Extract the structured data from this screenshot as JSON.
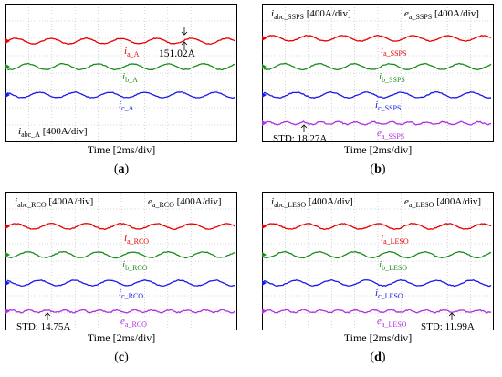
{
  "colors": {
    "a": "#e60000",
    "b": "#1a8c1a",
    "c": "#1a1ae6",
    "e": "#b030e0",
    "grid": "#b8b8b8",
    "frame": "#000000"
  },
  "panels": [
    {
      "id": "a",
      "caption": "a",
      "time_label": "Time [2ms/div]",
      "header_left": "i",
      "header_left_sub": "abc_A",
      "header_left_scale": " [400A/div]",
      "header_left_position": "bottom",
      "header_right": "",
      "header_right_sub": "",
      "header_right_scale": "",
      "labels": [
        {
          "main": "i",
          "sub": "a_A",
          "color": "a",
          "series": "a"
        },
        {
          "main": "i",
          "sub": "b_A",
          "color": "b",
          "series": "b"
        },
        {
          "main": "i",
          "sub": "c_A",
          "color": "c",
          "series": "c"
        }
      ],
      "annotation": "151.02A",
      "annotation_kind": "amplitude",
      "std_text": ""
    },
    {
      "id": "b",
      "caption": "b",
      "time_label": "Time [2ms/div]",
      "header_left": "i",
      "header_left_sub": "abc_SSPS",
      "header_left_scale": " [400A/div]",
      "header_left_position": "top",
      "header_right": "e",
      "header_right_sub": "a_SSPS",
      "header_right_scale": " [400A/div]",
      "labels": [
        {
          "main": "i",
          "sub": "a_SSPS",
          "color": "a",
          "series": "a"
        },
        {
          "main": "i",
          "sub": "b_SSPS",
          "color": "b",
          "series": "b"
        },
        {
          "main": "i",
          "sub": "c_SSPS",
          "color": "c",
          "series": "c"
        },
        {
          "main": "e",
          "sub": "a_SSPS",
          "color": "e",
          "series": "e"
        }
      ],
      "annotation": "",
      "annotation_kind": "std",
      "std_text": "STD: 18.27A",
      "std_side": "left"
    },
    {
      "id": "c",
      "caption": "c",
      "time_label": "Time [2ms/div]",
      "header_left": "i",
      "header_left_sub": "abc_RCO",
      "header_left_scale": " [400A/div]",
      "header_left_position": "top",
      "header_right": "e",
      "header_right_sub": "a_RCO",
      "header_right_scale": " [400A/div]",
      "labels": [
        {
          "main": "i",
          "sub": "a_RCO",
          "color": "a",
          "series": "a"
        },
        {
          "main": "i",
          "sub": "b_RCO",
          "color": "b",
          "series": "b"
        },
        {
          "main": "i",
          "sub": "c_RCO",
          "color": "c",
          "series": "c"
        },
        {
          "main": "e",
          "sub": "a_RCO",
          "color": "e",
          "series": "e"
        }
      ],
      "annotation": "",
      "annotation_kind": "std",
      "std_text": "STD: 14.75A",
      "std_side": "left"
    },
    {
      "id": "d",
      "caption": "d",
      "time_label": "Time [2ms/div]",
      "header_left": "i",
      "header_left_sub": "abc_LESO",
      "header_left_scale": " [400A/div]",
      "header_left_position": "top",
      "header_right": "e",
      "header_right_sub": "a_LESO",
      "header_right_scale": " [400A/div]",
      "labels": [
        {
          "main": "i",
          "sub": "a_LESO",
          "color": "a",
          "series": "a"
        },
        {
          "main": "i",
          "sub": "b_LESO",
          "color": "b",
          "series": "b"
        },
        {
          "main": "i",
          "sub": "c_LESO",
          "color": "c",
          "series": "c"
        },
        {
          "main": "e",
          "sub": "a_LESO",
          "color": "e",
          "series": "e"
        }
      ],
      "annotation": "",
      "annotation_kind": "std",
      "std_text": "STD: 11.99A",
      "std_side": "right"
    }
  ],
  "chart_data": [
    {
      "type": "line",
      "panel": "a",
      "x_unit": "2ms/div",
      "y_unit": "400A/div",
      "series": [
        {
          "name": "i_a_A",
          "amplitude_A": 151.02
        },
        {
          "name": "i_b_A"
        },
        {
          "name": "i_c_A"
        }
      ]
    },
    {
      "type": "line",
      "panel": "b",
      "x_unit": "2ms/div",
      "y_unit": "400A/div",
      "series": [
        {
          "name": "i_a_SSPS"
        },
        {
          "name": "i_b_SSPS"
        },
        {
          "name": "i_c_SSPS"
        },
        {
          "name": "e_a_SSPS",
          "std_A": 18.27
        }
      ]
    },
    {
      "type": "line",
      "panel": "c",
      "x_unit": "2ms/div",
      "y_unit": "400A/div",
      "series": [
        {
          "name": "i_a_RCO"
        },
        {
          "name": "i_b_RCO"
        },
        {
          "name": "i_c_RCO"
        },
        {
          "name": "e_a_RCO",
          "std_A": 14.75
        }
      ]
    },
    {
      "type": "line",
      "panel": "d",
      "x_unit": "2ms/div",
      "y_unit": "400A/div",
      "series": [
        {
          "name": "i_a_LESO"
        },
        {
          "name": "i_b_LESO"
        },
        {
          "name": "i_c_LESO"
        },
        {
          "name": "e_a_LESO",
          "std_A": 11.99
        }
      ]
    }
  ]
}
